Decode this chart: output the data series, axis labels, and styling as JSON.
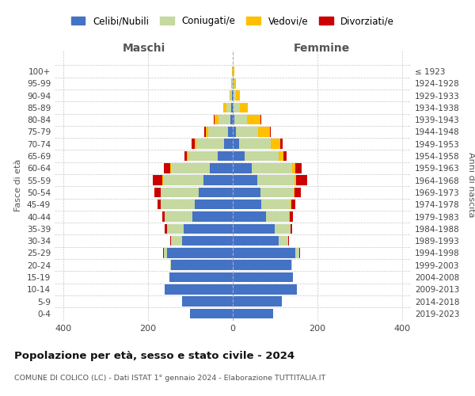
{
  "age_groups": [
    "0-4",
    "5-9",
    "10-14",
    "15-19",
    "20-24",
    "25-29",
    "30-34",
    "35-39",
    "40-44",
    "45-49",
    "50-54",
    "55-59",
    "60-64",
    "65-69",
    "70-74",
    "75-79",
    "80-84",
    "85-89",
    "90-94",
    "95-99",
    "100+"
  ],
  "birth_years": [
    "2019-2023",
    "2014-2018",
    "2009-2013",
    "2004-2008",
    "1999-2003",
    "1994-1998",
    "1989-1993",
    "1984-1988",
    "1979-1983",
    "1974-1978",
    "1969-1973",
    "1964-1968",
    "1959-1963",
    "1954-1958",
    "1949-1953",
    "1944-1948",
    "1939-1943",
    "1934-1938",
    "1929-1933",
    "1924-1928",
    "≤ 1923"
  ],
  "maschi": {
    "celibi": [
      100,
      120,
      160,
      150,
      145,
      155,
      120,
      115,
      95,
      90,
      80,
      70,
      55,
      35,
      20,
      12,
      5,
      3,
      1,
      0,
      0
    ],
    "coniugati": [
      0,
      0,
      0,
      0,
      2,
      8,
      25,
      40,
      65,
      80,
      90,
      95,
      90,
      70,
      65,
      45,
      28,
      12,
      4,
      2,
      0
    ],
    "vedovi": [
      0,
      0,
      0,
      0,
      0,
      0,
      0,
      0,
      0,
      0,
      0,
      2,
      2,
      3,
      4,
      6,
      10,
      7,
      3,
      2,
      1
    ],
    "divorziati": [
      0,
      0,
      0,
      0,
      0,
      2,
      3,
      5,
      6,
      7,
      15,
      22,
      15,
      6,
      8,
      4,
      2,
      1,
      0,
      0,
      0
    ]
  },
  "femmine": {
    "nubili": [
      95,
      115,
      152,
      142,
      138,
      148,
      108,
      98,
      78,
      68,
      65,
      58,
      45,
      28,
      15,
      8,
      4,
      2,
      1,
      1,
      0
    ],
    "coniugate": [
      0,
      0,
      0,
      0,
      2,
      8,
      22,
      38,
      55,
      68,
      78,
      88,
      95,
      80,
      75,
      52,
      30,
      14,
      6,
      2,
      1
    ],
    "vedove": [
      0,
      0,
      0,
      0,
      0,
      0,
      0,
      0,
      2,
      2,
      3,
      4,
      7,
      12,
      22,
      28,
      32,
      20,
      10,
      4,
      2
    ],
    "divorziate": [
      0,
      0,
      0,
      0,
      0,
      2,
      3,
      4,
      6,
      10,
      15,
      25,
      15,
      7,
      6,
      2,
      1,
      0,
      0,
      0,
      0
    ]
  },
  "colors": {
    "celibi_nubili": "#4472c4",
    "coniugati": "#c5d9a0",
    "vedovi": "#ffc000",
    "divorziati": "#cc0000"
  },
  "title": "Popolazione per età, sesso e stato civile - 2024",
  "subtitle": "COMUNE DI COLICO (LC) - Dati ISTAT 1° gennaio 2024 - Elaborazione TUTTITALIA.IT",
  "xlabel_left": "Maschi",
  "xlabel_right": "Femmine",
  "ylabel_left": "Fasce di età",
  "ylabel_right": "Anni di nascita",
  "xlim": 420,
  "legend_labels": [
    "Celibi/Nubili",
    "Coniugati/e",
    "Vedovi/e",
    "Divorziati/e"
  ],
  "background_color": "#ffffff",
  "grid_color": "#c8c8c8"
}
